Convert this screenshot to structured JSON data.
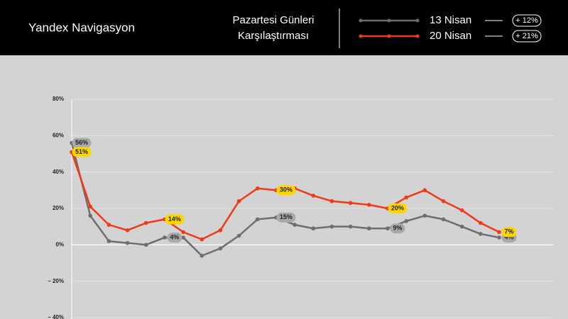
{
  "brand": "Yandex Navigasyon",
  "chart_data": {
    "type": "line",
    "title": [
      "Pazartesi Günleri",
      "Karşılaştırması"
    ],
    "categories": [
      null,
      null,
      null,
      null,
      null,
      null,
      null,
      null,
      null,
      null,
      null,
      null,
      null,
      null,
      null,
      null,
      null,
      null,
      null,
      null,
      null,
      null,
      null,
      null
    ],
    "series": [
      {
        "name": "13 Nisan",
        "color": "#6e6e6e",
        "label_color": "#a9a9a9",
        "change": "+ 12%",
        "values": [
          56,
          16,
          2,
          1,
          0,
          4,
          4,
          -6,
          -2,
          5,
          14,
          15,
          11,
          9,
          10,
          10,
          9,
          9,
          13,
          16,
          14,
          10,
          6,
          4
        ],
        "value_labels": [
          "56%",
          null,
          null,
          null,
          null,
          "4%",
          null,
          null,
          null,
          null,
          null,
          "15%",
          null,
          null,
          null,
          null,
          null,
          "9%",
          null,
          null,
          null,
          null,
          null,
          "4%"
        ]
      },
      {
        "name": "20 Nisan",
        "color": "#f03a17",
        "label_color": "#ffd500",
        "change": "+ 21%",
        "values": [
          51,
          21,
          11,
          8,
          12,
          14,
          7,
          3,
          8,
          24,
          31,
          30,
          31,
          27,
          24,
          23,
          22,
          20,
          26,
          30,
          24,
          19,
          12,
          7
        ],
        "value_labels": [
          "51%",
          null,
          null,
          null,
          null,
          "14%",
          null,
          null,
          null,
          null,
          null,
          "30%",
          null,
          null,
          null,
          null,
          null,
          "20%",
          null,
          null,
          null,
          null,
          null,
          "7%"
        ]
      }
    ],
    "ylim": [
      -40,
      80
    ],
    "yticks": [
      {
        "value": 80,
        "label": "80%"
      },
      {
        "value": 60,
        "label": "60%"
      },
      {
        "value": 40,
        "label": "40%"
      },
      {
        "value": 20,
        "label": "20%"
      },
      {
        "value": 0,
        "label": "0%"
      },
      {
        "value": -20,
        "label": "– 20%"
      },
      {
        "value": -40,
        "label": "– 40%"
      }
    ],
    "grid": true
  }
}
